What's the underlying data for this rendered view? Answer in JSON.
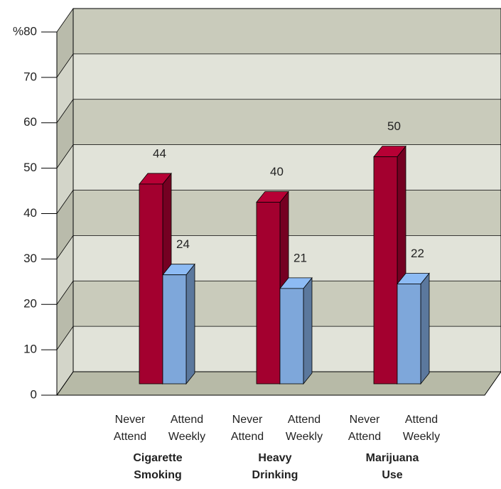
{
  "chart_data": {
    "type": "bar3d",
    "categories": [
      "Cigarette Smoking",
      "Heavy Drinking",
      "Marijuana Use"
    ],
    "series": [
      {
        "name": "Never Attend",
        "color": "#a3002f",
        "values": [
          44,
          40,
          50
        ]
      },
      {
        "name": "Attend Weekly",
        "color": "#7ea7da",
        "values": [
          24,
          21,
          22
        ]
      }
    ],
    "ylim": [
      0,
      80
    ],
    "yticks": [
      0,
      10,
      20,
      30,
      40,
      50,
      60,
      70,
      {
        "value": 80,
        "label": "%80"
      }
    ],
    "grid": true
  }
}
